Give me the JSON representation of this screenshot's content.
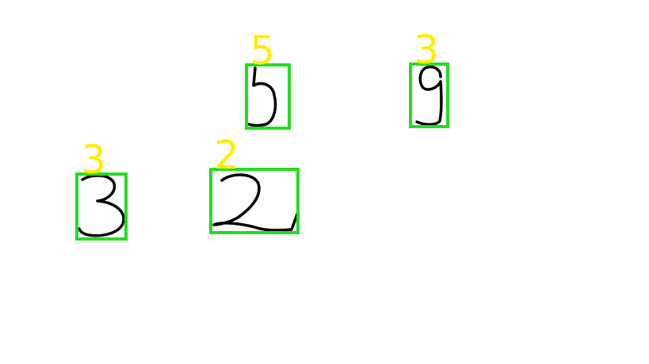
{
  "colors": {
    "background": "#ffffff",
    "box": "#22dd22",
    "label": "#ffee00",
    "ink": "#000000"
  },
  "detections": [
    {
      "label": "5",
      "glyph": "handwritten-5"
    },
    {
      "label": "3",
      "glyph": "handwritten-9"
    },
    {
      "label": "3",
      "glyph": "handwritten-3"
    },
    {
      "label": "2",
      "glyph": "handwritten-2"
    }
  ]
}
